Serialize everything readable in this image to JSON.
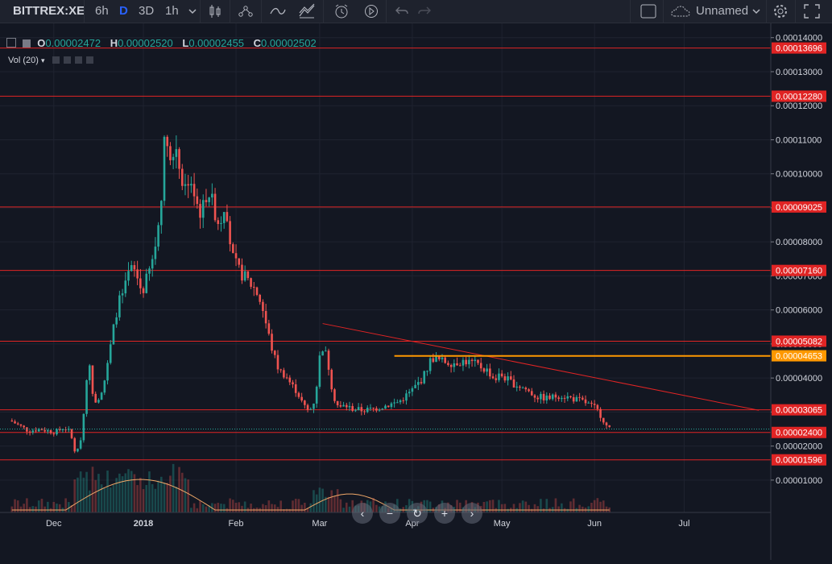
{
  "toolbar": {
    "symbol": "BITTREX:XE",
    "intervals": [
      "6h",
      "D",
      "3D",
      "1h"
    ],
    "active_interval": "D",
    "layout_name": "Unnamed",
    "icons": [
      "chevron-down-icon",
      "candles-icon",
      "indicators-icon",
      "line-icon",
      "compare-icon",
      "alert-icon",
      "replay-icon",
      "undo-icon",
      "redo-icon",
      "square-icon",
      "cloud-icon",
      "gear-icon",
      "fullscreen-icon"
    ]
  },
  "legend": {
    "open_label": "O",
    "open": "0.00002472",
    "high_label": "H",
    "high": "0.00002520",
    "low_label": "L",
    "low": "0.00002455",
    "close_label": "C",
    "close": "0.00002502"
  },
  "volume_label": "Vol (20)",
  "nav_buttons": [
    "‹",
    "−",
    "↻",
    "+",
    "›"
  ],
  "colors": {
    "background": "#131722",
    "up": "#26a69a",
    "down": "#ef5350",
    "hline": "#e02424",
    "orange": "#ff9800",
    "volume_ma": "#f0a868"
  },
  "chart_data": {
    "type": "candlestick",
    "x_ticks": [
      "Dec",
      "2018",
      "Feb",
      "Mar",
      "Apr",
      "May",
      "Jun",
      "Jul"
    ],
    "y_ticks": [
      "0.00014000",
      "0.00013000",
      "0.00012000",
      "0.00011000",
      "0.00010000",
      "0.00009000",
      "0.00008000",
      "0.00007000",
      "0.00006000",
      "0.00005000",
      "0.00004000",
      "0.00003000",
      "0.00002000",
      "0.00001000"
    ],
    "y_tick_values": [
      0.00014,
      0.00013,
      0.00012,
      0.00011,
      0.0001,
      9e-05,
      8e-05,
      7e-05,
      6e-05,
      5e-05,
      4e-05,
      3e-05,
      2e-05,
      1e-05
    ],
    "ylim": [
      5e-07,
      0.0001442
    ],
    "horizontal_levels": [
      {
        "value": 0.00013696,
        "label": "0.00013696",
        "color": "#e02424"
      },
      {
        "value": 0.0001228,
        "label": "0.00012280",
        "color": "#e02424"
      },
      {
        "value": 9.025e-05,
        "label": "0.00009025",
        "color": "#e02424"
      },
      {
        "value": 7.16e-05,
        "label": "0.00007160",
        "color": "#e02424"
      },
      {
        "value": 5.082e-05,
        "label": "0.00005082",
        "color": "#e02424"
      },
      {
        "value": 4.653e-05,
        "label": "0.00004653",
        "color": "#ff9800"
      },
      {
        "value": 3.065e-05,
        "label": "0.00003065",
        "color": "#e02424"
      },
      {
        "value": 2.4e-05,
        "label": "0.00002400",
        "color": "#e02424"
      },
      {
        "value": 1.596e-05,
        "label": "0.00001596",
        "color": "#e02424"
      }
    ],
    "price_series": [
      [
        0,
        2.75e-05
      ],
      [
        3,
        2.6e-05
      ],
      [
        6,
        2.45e-05
      ],
      [
        10,
        2.5e-05
      ],
      [
        15,
        2.4e-05
      ],
      [
        18,
        2.55e-05
      ],
      [
        20,
        2.4e-05
      ],
      [
        22,
        1.7e-05
      ],
      [
        24,
        2.4e-05
      ],
      [
        26,
        4.6e-05
      ],
      [
        28,
        3.3e-05
      ],
      [
        30,
        3.5e-05
      ],
      [
        32,
        4.1e-05
      ],
      [
        34,
        5.2e-05
      ],
      [
        36,
        6.2e-05
      ],
      [
        38,
        6.5e-05
      ],
      [
        40,
        7.2e-05
      ],
      [
        42,
        7.1e-05
      ],
      [
        44,
        6.5e-05
      ],
      [
        46,
        7e-05
      ],
      [
        48,
        7.6e-05
      ],
      [
        50,
        8.8e-05
      ],
      [
        52,
        0.000115
      ],
      [
        54,
        0.0001
      ],
      [
        55,
        0.00011
      ],
      [
        56,
        0.000106
      ],
      [
        58,
        9.5e-05
      ],
      [
        60,
        0.0001
      ],
      [
        62,
        9.2e-05
      ],
      [
        64,
        8.8e-05
      ],
      [
        66,
        9.6e-05
      ],
      [
        68,
        9e-05
      ],
      [
        70,
        8.5e-05
      ],
      [
        72,
        9.3e-05
      ],
      [
        74,
        7.6e-05
      ],
      [
        76,
        7.2e-05
      ],
      [
        78,
        7e-05
      ],
      [
        80,
        6.8e-05
      ],
      [
        82,
        6.6e-05
      ],
      [
        84,
        6.2e-05
      ],
      [
        86,
        5.4e-05
      ],
      [
        88,
        4.7e-05
      ],
      [
        90,
        4.2e-05
      ],
      [
        92,
        4.1e-05
      ],
      [
        94,
        3.8e-05
      ],
      [
        96,
        3.6e-05
      ],
      [
        98,
        3.2e-05
      ],
      [
        100,
        3e-05
      ],
      [
        102,
        3.4e-05
      ],
      [
        104,
        5e-05
      ],
      [
        106,
        4.6e-05
      ],
      [
        108,
        3.5e-05
      ],
      [
        110,
        3.1e-05
      ],
      [
        112,
        3.2e-05
      ],
      [
        114,
        3.1e-05
      ],
      [
        118,
        3.05e-05
      ],
      [
        122,
        3.1e-05
      ],
      [
        126,
        3.2e-05
      ],
      [
        130,
        3.3e-05
      ],
      [
        134,
        3.6e-05
      ],
      [
        138,
        4e-05
      ],
      [
        141,
        4.6e-05
      ],
      [
        144,
        4.5e-05
      ],
      [
        148,
        4.45e-05
      ],
      [
        152,
        4.5e-05
      ],
      [
        156,
        4.4e-05
      ],
      [
        160,
        4.2e-05
      ],
      [
        162,
        3.95e-05
      ],
      [
        164,
        4.1e-05
      ],
      [
        168,
        3.85e-05
      ],
      [
        172,
        3.7e-05
      ],
      [
        176,
        3.45e-05
      ],
      [
        180,
        3.4e-05
      ],
      [
        184,
        3.5e-05
      ],
      [
        188,
        3.4e-05
      ],
      [
        192,
        3.3e-05
      ],
      [
        196,
        3.1e-05
      ],
      [
        198,
        2.85e-05
      ],
      [
        200,
        2.5e-05
      ]
    ],
    "x_tick_days": [
      14,
      44,
      75,
      103,
      134,
      164,
      195,
      225
    ],
    "x_day_range": [
      -4,
      254
    ],
    "trendlines": [
      {
        "from": [
          104,
          5.6e-05
        ],
        "to": [
          250,
          3.05e-05
        ],
        "color": "#e02424"
      },
      {
        "from": [
          128,
          4.65e-05
        ],
        "to": [
          254,
          4.65e-05
        ],
        "color": "#ff9800"
      }
    ],
    "current_price": 2.5e-05
  }
}
